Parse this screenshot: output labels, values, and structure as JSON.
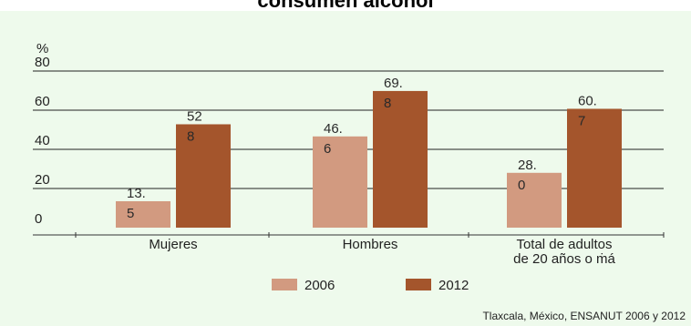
{
  "title": "consumen alcohol",
  "source": "Tlaxcala, México, ENSANUT 2006 y 2012",
  "colors": {
    "2006": "#d29a80",
    "2012": "#a4552c",
    "background": "#eefaec"
  },
  "chart_data": {
    "type": "bar",
    "title": "consumen alcohol",
    "ylabel": "%",
    "ylim": [
      0,
      80
    ],
    "yticks": [
      "0",
      "20",
      "40",
      "60",
      "80"
    ],
    "categories": [
      "Mujeres",
      "Hombres",
      "Total de adultos de 20 años o más"
    ],
    "category_labels": [
      [
        "Mujeres"
      ],
      [
        "Hombres"
      ],
      [
        "Total de adultos",
        "de 20 años o ṁá"
      ]
    ],
    "series": [
      {
        "name": "2006",
        "values": [
          13.5,
          46.6,
          28.0
        ],
        "labels": [
          [
            "13.",
            "5"
          ],
          [
            "46.",
            "6"
          ],
          [
            "28.",
            "0"
          ]
        ]
      },
      {
        "name": "2012",
        "values": [
          52.8,
          69.8,
          60.7
        ],
        "labels": [
          [
            "52",
            "8"
          ],
          [
            "69.",
            "8"
          ],
          [
            "60.",
            "7"
          ]
        ]
      }
    ],
    "legend": [
      "2006",
      "2012"
    ],
    "legend_position": "bottom",
    "grid": true
  }
}
